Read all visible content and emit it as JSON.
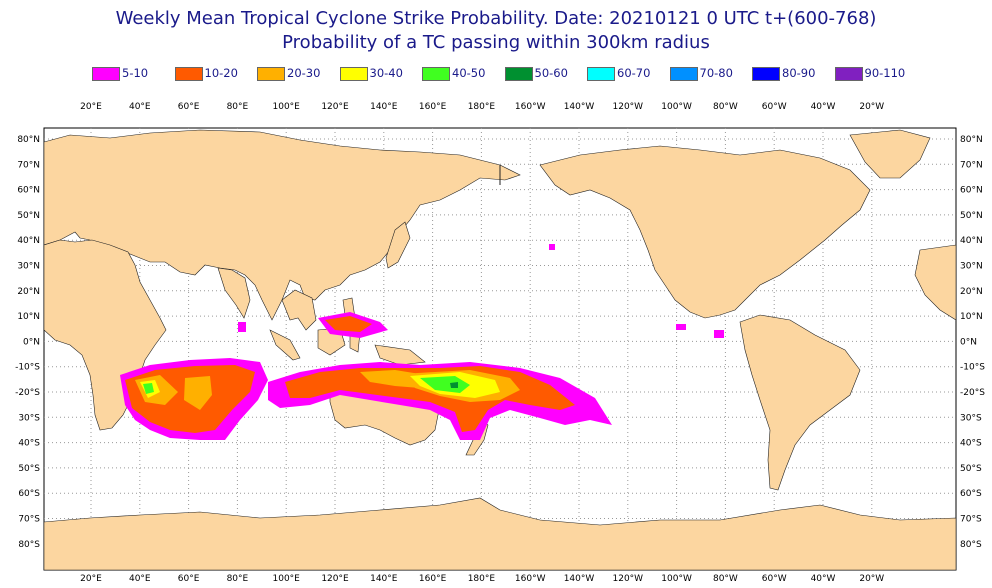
{
  "title": {
    "line1": "Weekly Mean Tropical Cyclone Strike Probability. Date: 20210121  0 UTC    t+(600-768)",
    "line2": "Probability of a TC passing within  300km radius"
  },
  "legend": [
    {
      "label": "5-10",
      "color": "#ff00ff"
    },
    {
      "label": "10-20",
      "color": "#ff5a00"
    },
    {
      "label": "20-30",
      "color": "#ffb000"
    },
    {
      "label": "30-40",
      "color": "#ffff00"
    },
    {
      "label": "40-50",
      "color": "#40ff20"
    },
    {
      "label": "50-60",
      "color": "#009030"
    },
    {
      "label": "60-70",
      "color": "#00ffff"
    },
    {
      "label": "70-80",
      "color": "#0090ff"
    },
    {
      "label": "80-90",
      "color": "#0000ff"
    },
    {
      "label": "90-110",
      "color": "#8020c0"
    }
  ],
  "map": {
    "projection": "equirectangular, centred on 180°",
    "longitude_labels": [
      "20°E",
      "40°E",
      "60°E",
      "80°E",
      "100°E",
      "120°E",
      "140°E",
      "160°E",
      "180°E",
      "160°W",
      "140°W",
      "120°W",
      "100°W",
      "80°W",
      "60°W",
      "40°W",
      "20°W"
    ],
    "latitude_labels": [
      "80°N",
      "70°N",
      "60°N",
      "50°N",
      "40°N",
      "30°N",
      "20°N",
      "10°N",
      "0°N",
      "-10°S",
      "-20°S",
      "30°S",
      "40°S",
      "50°S",
      "60°S",
      "70°S",
      "80°S"
    ],
    "land_color": "#fcd6a0",
    "grid": "dotted",
    "probability_regions": [
      {
        "name": "South-west Indian Ocean / Madagascar",
        "max_class": "40-50"
      },
      {
        "name": "South-east Indian Ocean / North Australia",
        "max_class": "30-40"
      },
      {
        "name": "Coral Sea / South Pacific",
        "max_class": "50-60"
      },
      {
        "name": "Philippines",
        "max_class": "10-20"
      }
    ]
  }
}
